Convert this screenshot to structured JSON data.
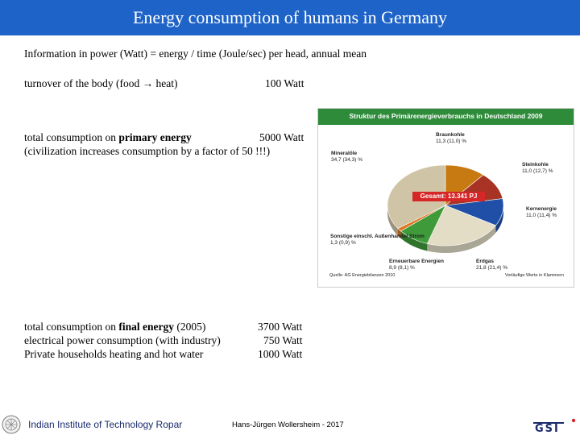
{
  "title": "Energy consumption of humans in Germany",
  "intro": "Information in power (Watt) = energy / time (Joule/sec) per head, annual mean",
  "body_turnover": {
    "label": "turnover of the body (food → heat)",
    "value": "100 Watt"
  },
  "primary": {
    "prefix": "total consumption on ",
    "bold": "primary energy",
    "value": "5000 Watt",
    "note": "(civilization increases consumption by a factor of 50 !!!)"
  },
  "final": {
    "prefix": "total consumption on ",
    "bold": "final energy",
    "suffix": " (2005)",
    "value": "3700 Watt",
    "electrical": {
      "label": "electrical power consumption (with industry)",
      "value": "750 Watt"
    },
    "households": {
      "label": "Private households heating and hot water",
      "value": "1000 Watt"
    }
  },
  "figure": {
    "title": "Struktur des Primärenergieverbrauchs in Deutschland 2009",
    "total": "Gesamt: 13.341 PJ",
    "source": "Quelle: AG Energiebilanzen 2010",
    "unit_note": "Vorläufige Werte in Klammern",
    "slices": [
      {
        "name": "Mineralöle",
        "value_text": "34,7 (34,3) %",
        "value": 34.7,
        "color": "#cfc4a6"
      },
      {
        "name": "Braunkohle",
        "value_text": "11,3 (11,0) %",
        "value": 11.3,
        "color": "#c87a12"
      },
      {
        "name": "Steinkohle",
        "value_text": "11,0 (12,7) %",
        "value": 11.0,
        "color": "#a83224"
      },
      {
        "name": "Kernenergie",
        "value_text": "11,0 (11,4) %",
        "value": 11.0,
        "color": "#1f4fa6"
      },
      {
        "name": "Erdgas",
        "value_text": "21,8 (21,4) %",
        "value": 21.8,
        "color": "#e3ddc6"
      },
      {
        "name": "Erneuerbare Energien",
        "value_text": "8,9 (8,1) %",
        "value": 8.9,
        "color": "#3f9a3a"
      },
      {
        "name": "Sonstige einschl. Außenhandel Strom",
        "value_text": "1,3 (0,9) %",
        "value": 1.3,
        "color": "#e0751f"
      }
    ]
  },
  "footer": {
    "institute": "Indian Institute of Technology Ropar",
    "author": "Hans-Jürgen Wollersheim - 2017",
    "logo_text": "GSI"
  }
}
